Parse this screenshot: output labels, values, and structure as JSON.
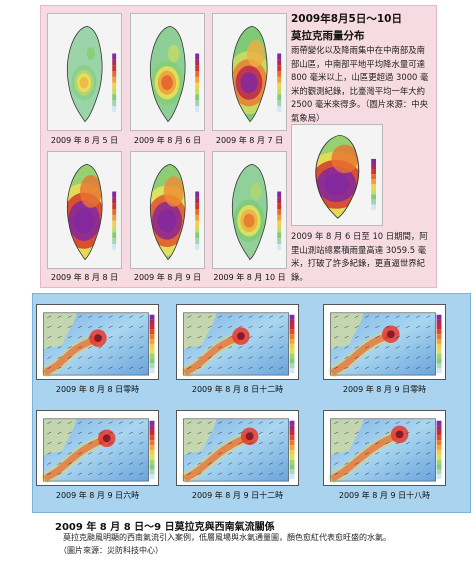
{
  "rain_section": {
    "title": "2009年8月5日～10日",
    "subtitle": "莫拉克雨量分布",
    "description": "雨帶變化以及降雨集中在中南部及南部山區，中南部平地平均降水量可達 800 毫米以上，山區更超過 3000 毫米的觀測紀錄，比臺灣平均一年大約 2500 毫米來得多。（圖片來源：中央氣象局）",
    "note": "2009 年 8 月 6 日至 10 日期間，阿里山測站總累積雨量高達 3059.5 毫米，打破了許多紀錄，更直逼世界紀錄。",
    "maps": [
      {
        "caption": "2009 年 8 月 5 日",
        "intensity": 0.15
      },
      {
        "caption": "2009 年 8 月 6 日",
        "intensity": 0.35
      },
      {
        "caption": "2009 年 8 月 7 日",
        "intensity": 0.75
      },
      {
        "caption": "2009 年 8 月 8 日",
        "intensity": 1.0
      },
      {
        "caption": "2009 年 8 月 9 日",
        "intensity": 0.9
      },
      {
        "caption": "2009 年 8 月 10 日",
        "intensity": 0.3
      }
    ]
  },
  "flux_section": {
    "maps": [
      {
        "caption": "2009 年 8 月 8 日零時"
      },
      {
        "caption": "2009 年 8 月 8 日十二時"
      },
      {
        "caption": "2009 年 8 月 9 日零時"
      },
      {
        "caption": "2009 年 8 月 9 日六時"
      },
      {
        "caption": "2009 年 8 月 9 日十二時"
      },
      {
        "caption": "2009 年 8 月 9 日十八時"
      }
    ],
    "title": "2009 年 8 月 8 日～9 日莫拉克與西南氣流關係",
    "description": "莫拉克颱風明顯的西南氣流引入案例，低層風場與水氣通量圖，顏色愈紅代表愈旺盛的水氣。",
    "source": "（圖片來源：災防科技中心）"
  }
}
